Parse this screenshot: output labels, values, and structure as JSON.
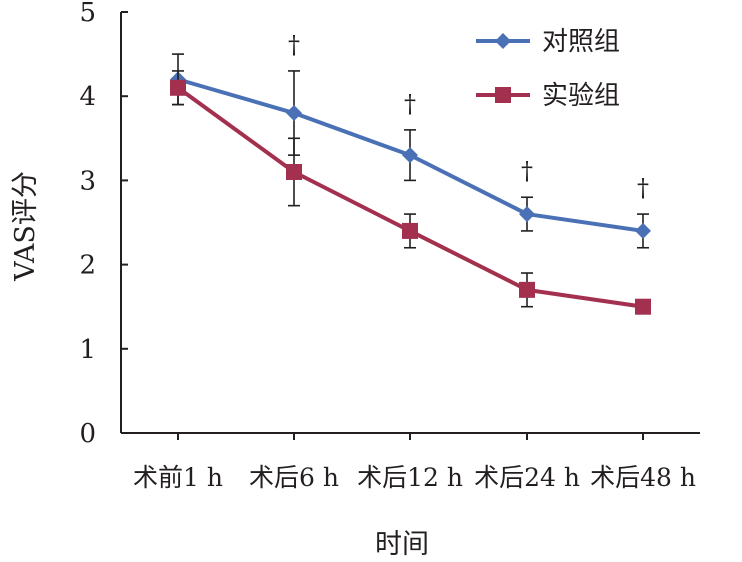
{
  "chart_data": {
    "type": "line",
    "title": "",
    "xlabel": "时间",
    "ylabel": "VAS评分",
    "ylim": [
      0,
      5
    ],
    "yticks": [
      0,
      1,
      2,
      3,
      4,
      5
    ],
    "categories": [
      "术前1 h",
      "术后6 h",
      "术后12 h",
      "术后24 h",
      "术后48 h"
    ],
    "series": [
      {
        "name": "对照组",
        "color": "#4a71b5",
        "marker": "diamond",
        "values": [
          4.2,
          3.8,
          3.3,
          2.6,
          2.4
        ],
        "error": [
          0.3,
          0.5,
          0.3,
          0.2,
          0.2
        ]
      },
      {
        "name": "实验组",
        "color": "#a3304f",
        "marker": "square",
        "values": [
          4.1,
          3.1,
          2.4,
          1.7,
          1.5
        ],
        "error": [
          0.2,
          0.4,
          0.2,
          0.2,
          0.0
        ]
      }
    ],
    "significance": [
      "",
      "†",
      "†",
      "†",
      "†"
    ],
    "legend_position": "top-right",
    "grid": false
  }
}
